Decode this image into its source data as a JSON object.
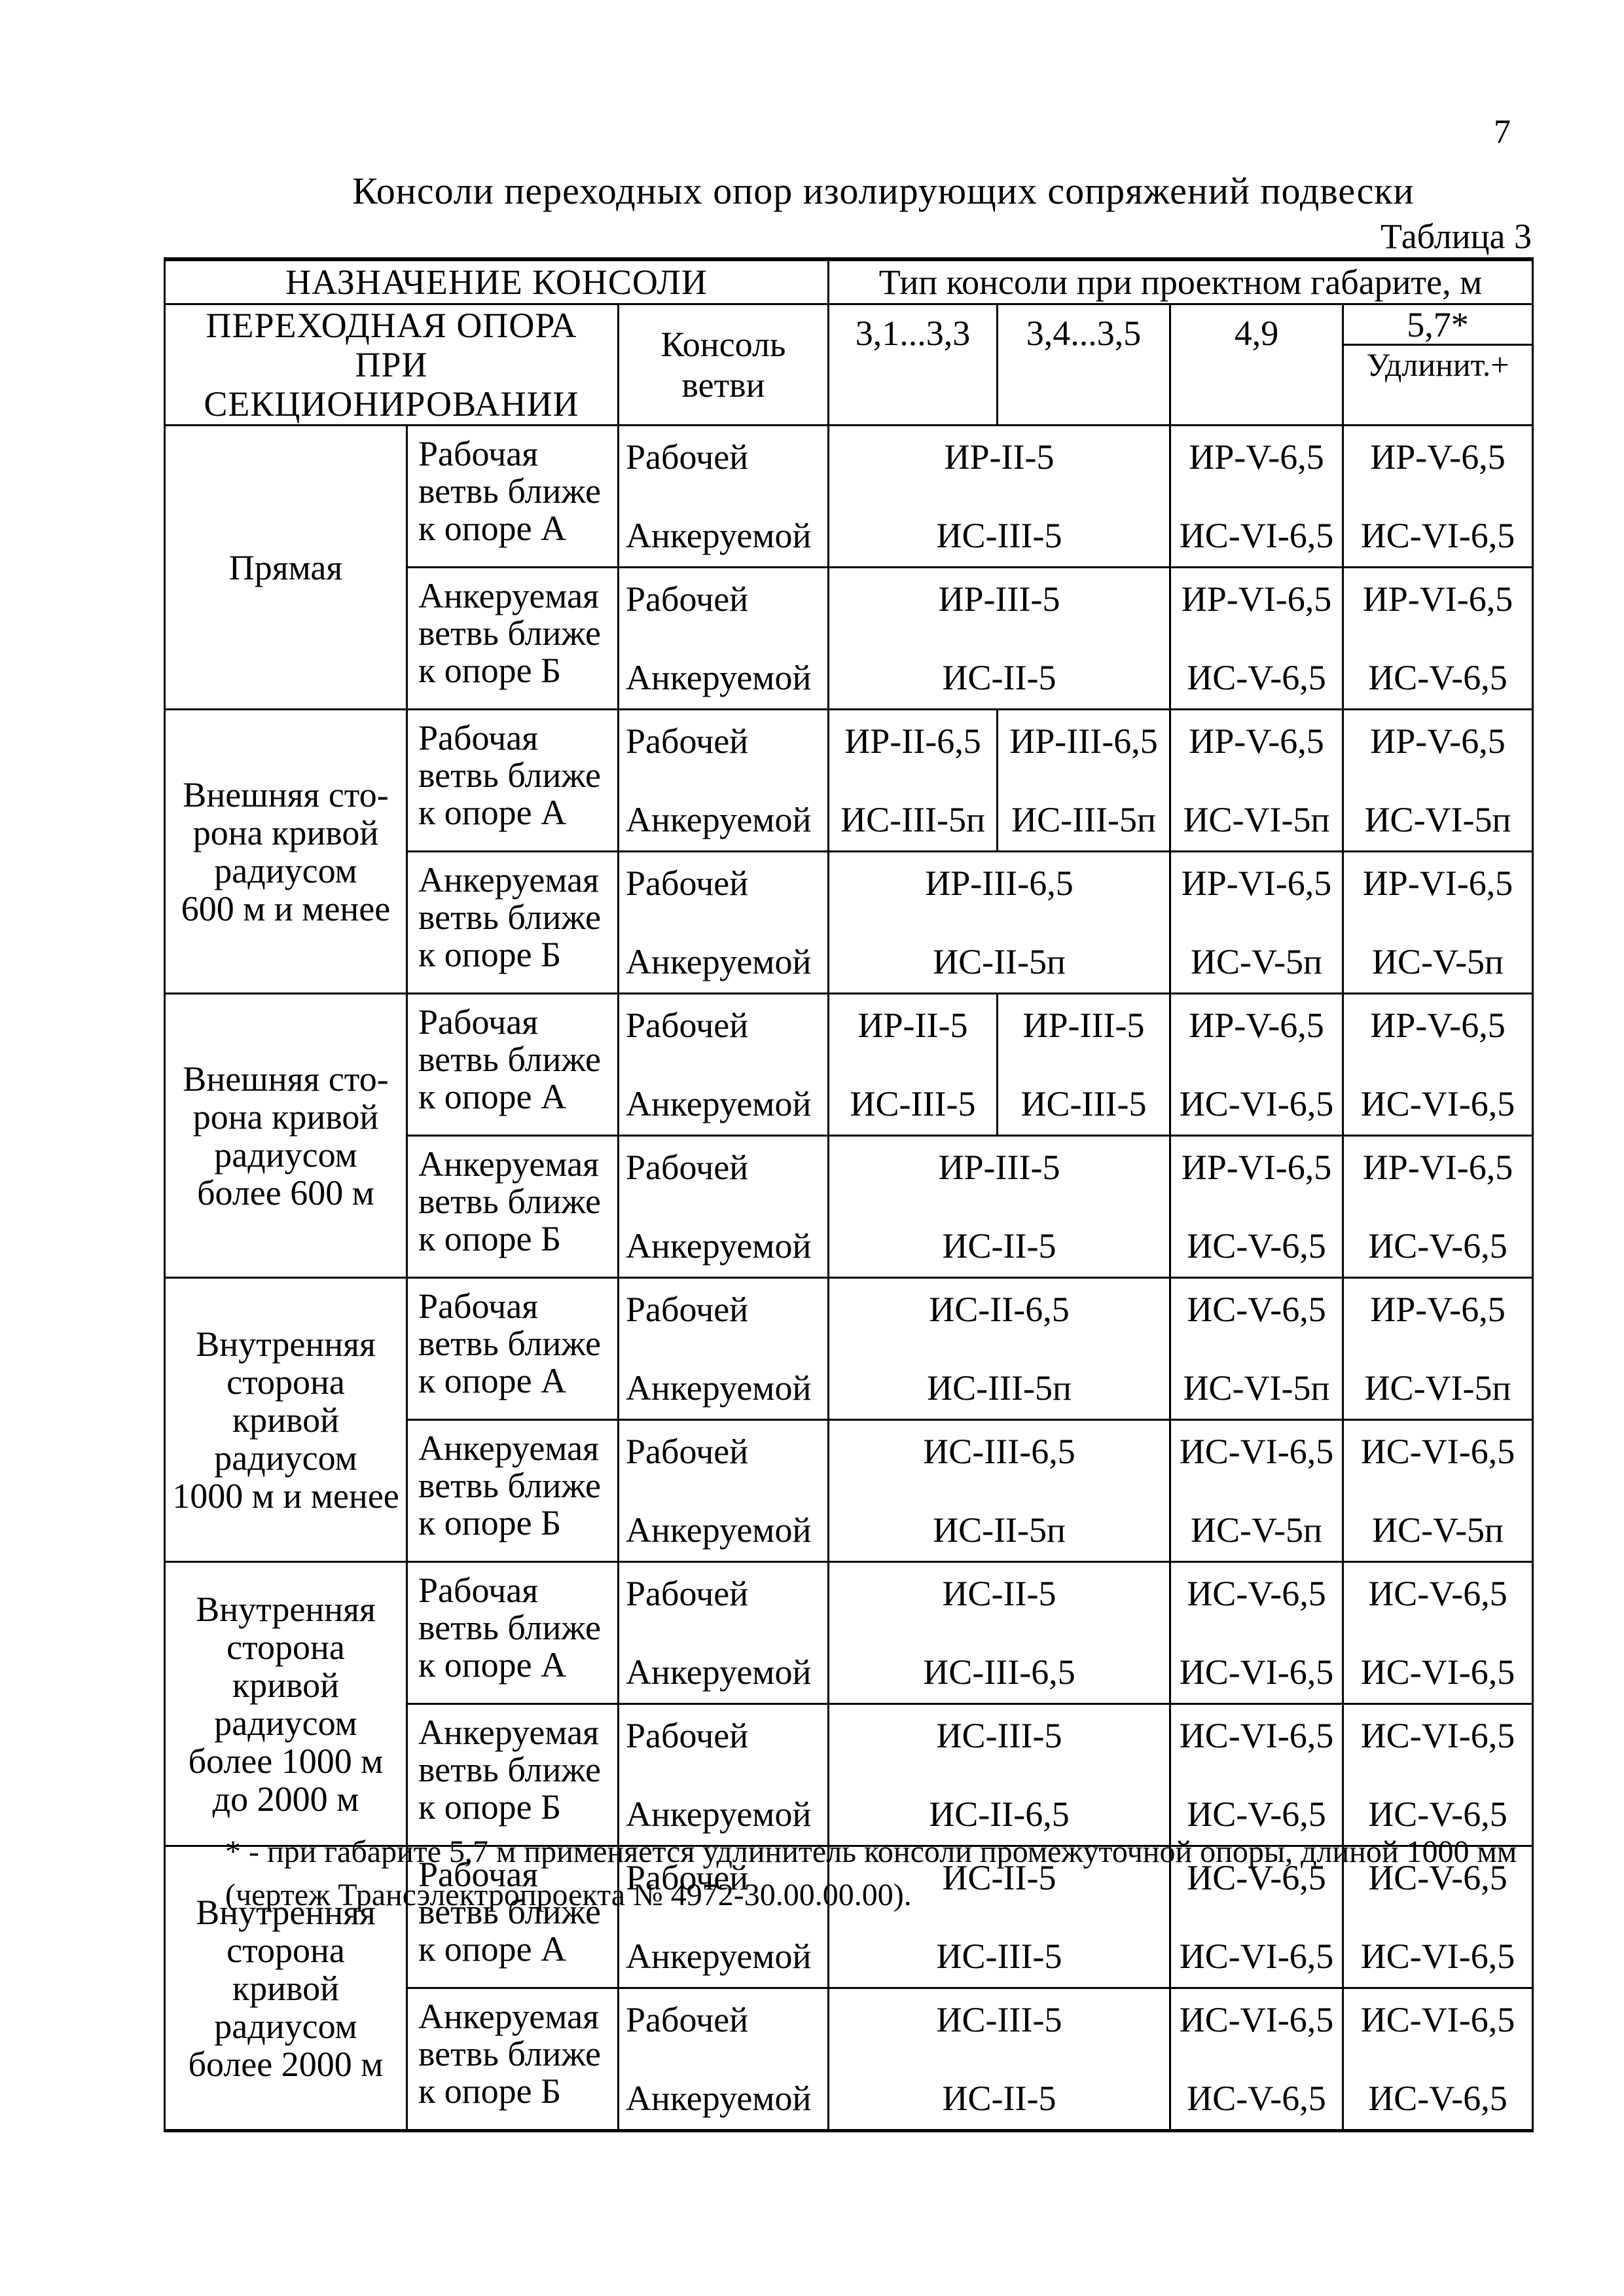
{
  "colors": {
    "ink": "#000000",
    "paper": "#ffffff"
  },
  "page_number": "7",
  "title": "Консоли переходных опор изолирующих сопряжений подвески",
  "table_caption": "Таблица 3",
  "footnote_lines": [
    "* - при габарите 5,7 м применяется удлинитель консоли промежуточной опоры, длиной 1000 мм",
    "(чертеж Трансэлектропроекта № 4972-30.00.00.00)."
  ],
  "table": {
    "header": {
      "purpose": "НАЗНАЧЕНИЕ КОНСОЛИ",
      "gauge_title": "Тип консоли при проектном габарите, м",
      "support_lines": [
        "ПЕРЕХОДНАЯ ОПОРА",
        "ПРИ СЕКЦИОНИРОВАНИИ"
      ],
      "console_lines": [
        "Консоль",
        "ветви"
      ],
      "gauges": [
        "3,1...3,3",
        "3,4...3,5",
        "4,9",
        "5,7*"
      ],
      "extension": "Удлинит.+"
    },
    "groups": [
      {
        "name_lines": [
          "Прямая"
        ],
        "blocks": [
          {
            "branch_lines": [
              "Рабочая",
              "ветвь ближе",
              "к опоре А"
            ],
            "rows": [
              {
                "console": "Рабочей",
                "values": [
                  {
                    "text": "ИР-II-5",
                    "span": 2
                  },
                  {
                    "text": "ИР-V-6,5",
                    "span": 1
                  },
                  {
                    "text": "ИР-V-6,5",
                    "span": 1
                  }
                ]
              },
              {
                "console": "Анкеруемой",
                "values": [
                  {
                    "text": "ИС-III-5",
                    "span": 2
                  },
                  {
                    "text": "ИС-VI-6,5",
                    "span": 1
                  },
                  {
                    "text": "ИС-VI-6,5",
                    "span": 1
                  }
                ]
              }
            ]
          },
          {
            "branch_lines": [
              "Анкеруемая",
              "ветвь ближе",
              "к опоре Б"
            ],
            "rows": [
              {
                "console": "Рабочей",
                "values": [
                  {
                    "text": "ИР-III-5",
                    "span": 2
                  },
                  {
                    "text": "ИР-VI-6,5",
                    "span": 1
                  },
                  {
                    "text": "ИР-VI-6,5",
                    "span": 1
                  }
                ]
              },
              {
                "console": "Анкеруемой",
                "values": [
                  {
                    "text": "ИС-II-5",
                    "span": 2
                  },
                  {
                    "text": "ИС-V-6,5",
                    "span": 1
                  },
                  {
                    "text": "ИС-V-6,5",
                    "span": 1
                  }
                ]
              }
            ]
          }
        ]
      },
      {
        "name_lines": [
          "Внешняя сто-",
          "рона кривой",
          "радиусом",
          "600 м и менее"
        ],
        "blocks": [
          {
            "branch_lines": [
              "Рабочая",
              "ветвь ближе",
              "к опоре А"
            ],
            "rows": [
              {
                "console": "Рабочей",
                "values": [
                  {
                    "text": "ИР-II-6,5",
                    "span": 1
                  },
                  {
                    "text": "ИР-III-6,5",
                    "span": 1
                  },
                  {
                    "text": "ИР-V-6,5",
                    "span": 1
                  },
                  {
                    "text": "ИР-V-6,5",
                    "span": 1
                  }
                ]
              },
              {
                "console": "Анкеруемой",
                "values": [
                  {
                    "text": "ИС-III-5п",
                    "span": 1
                  },
                  {
                    "text": "ИС-III-5п",
                    "span": 1
                  },
                  {
                    "text": "ИС-VI-5п",
                    "span": 1
                  },
                  {
                    "text": "ИС-VI-5п",
                    "span": 1
                  }
                ]
              }
            ]
          },
          {
            "branch_lines": [
              "Анкеруемая",
              "ветвь ближе",
              "к опоре Б"
            ],
            "rows": [
              {
                "console": "Рабочей",
                "values": [
                  {
                    "text": "ИР-III-6,5",
                    "span": 2
                  },
                  {
                    "text": "ИР-VI-6,5",
                    "span": 1
                  },
                  {
                    "text": "ИР-VI-6,5",
                    "span": 1
                  }
                ]
              },
              {
                "console": "Анкеруемой",
                "values": [
                  {
                    "text": "ИС-II-5п",
                    "span": 2
                  },
                  {
                    "text": "ИС-V-5п",
                    "span": 1
                  },
                  {
                    "text": "ИС-V-5п",
                    "span": 1
                  }
                ]
              }
            ]
          }
        ]
      },
      {
        "name_lines": [
          "Внешняя сто-",
          "рона кривой",
          "радиусом",
          "более 600 м"
        ],
        "blocks": [
          {
            "branch_lines": [
              "Рабочая",
              "ветвь ближе",
              "к опоре А"
            ],
            "rows": [
              {
                "console": "Рабочей",
                "values": [
                  {
                    "text": "ИР-II-5",
                    "span": 1
                  },
                  {
                    "text": "ИР-III-5",
                    "span": 1
                  },
                  {
                    "text": "ИР-V-6,5",
                    "span": 1
                  },
                  {
                    "text": "ИР-V-6,5",
                    "span": 1
                  }
                ]
              },
              {
                "console": "Анкеруемой",
                "values": [
                  {
                    "text": "ИС-III-5",
                    "span": 1
                  },
                  {
                    "text": "ИС-III-5",
                    "span": 1
                  },
                  {
                    "text": "ИС-VI-6,5",
                    "span": 1
                  },
                  {
                    "text": "ИС-VI-6,5",
                    "span": 1
                  }
                ]
              }
            ]
          },
          {
            "branch_lines": [
              "Анкеруемая",
              "ветвь ближе",
              "к опоре Б"
            ],
            "rows": [
              {
                "console": "Рабочей",
                "values": [
                  {
                    "text": "ИР-III-5",
                    "span": 2
                  },
                  {
                    "text": "ИР-VI-6,5",
                    "span": 1
                  },
                  {
                    "text": "ИР-VI-6,5",
                    "span": 1
                  }
                ]
              },
              {
                "console": "Анкеруемой",
                "values": [
                  {
                    "text": "ИС-II-5",
                    "span": 2
                  },
                  {
                    "text": "ИС-V-6,5",
                    "span": 1
                  },
                  {
                    "text": "ИС-V-6,5",
                    "span": 1
                  }
                ]
              }
            ]
          }
        ]
      },
      {
        "name_lines": [
          "Внутренняя",
          "сторона",
          "кривой",
          "радиусом",
          "1000 м и менее"
        ],
        "blocks": [
          {
            "branch_lines": [
              "Рабочая",
              "ветвь ближе",
              "к опоре А"
            ],
            "rows": [
              {
                "console": "Рабочей",
                "values": [
                  {
                    "text": "ИС-II-6,5",
                    "span": 2
                  },
                  {
                    "text": "ИС-V-6,5",
                    "span": 1
                  },
                  {
                    "text": "ИР-V-6,5",
                    "span": 1
                  }
                ]
              },
              {
                "console": "Анкеруемой",
                "values": [
                  {
                    "text": "ИС-III-5п",
                    "span": 2
                  },
                  {
                    "text": "ИС-VI-5п",
                    "span": 1
                  },
                  {
                    "text": "ИС-VI-5п",
                    "span": 1
                  }
                ]
              }
            ]
          },
          {
            "branch_lines": [
              "Анкеруемая",
              "ветвь ближе",
              "к опоре Б"
            ],
            "rows": [
              {
                "console": "Рабочей",
                "values": [
                  {
                    "text": "ИС-III-6,5",
                    "span": 2
                  },
                  {
                    "text": "ИС-VI-6,5",
                    "span": 1
                  },
                  {
                    "text": "ИС-VI-6,5",
                    "span": 1
                  }
                ]
              },
              {
                "console": "Анкеруемой",
                "values": [
                  {
                    "text": "ИС-II-5п",
                    "span": 2
                  },
                  {
                    "text": "ИС-V-5п",
                    "span": 1
                  },
                  {
                    "text": "ИС-V-5п",
                    "span": 1
                  }
                ]
              }
            ]
          }
        ]
      },
      {
        "name_lines": [
          "Внутренняя",
          "сторона",
          "кривой",
          "радиусом",
          "более 1000 м",
          "до 2000 м"
        ],
        "blocks": [
          {
            "branch_lines": [
              "Рабочая",
              "ветвь ближе",
              "к опоре А"
            ],
            "rows": [
              {
                "console": "Рабочей",
                "values": [
                  {
                    "text": "ИС-II-5",
                    "span": 2
                  },
                  {
                    "text": "ИС-V-6,5",
                    "span": 1
                  },
                  {
                    "text": "ИС-V-6,5",
                    "span": 1
                  }
                ]
              },
              {
                "console": "Анкеруемой",
                "values": [
                  {
                    "text": "ИС-III-6,5",
                    "span": 2
                  },
                  {
                    "text": "ИС-VI-6,5",
                    "span": 1
                  },
                  {
                    "text": "ИС-VI-6,5",
                    "span": 1
                  }
                ]
              }
            ]
          },
          {
            "branch_lines": [
              "Анкеруемая",
              "ветвь ближе",
              "к опоре Б"
            ],
            "rows": [
              {
                "console": "Рабочей",
                "values": [
                  {
                    "text": "ИС-III-5",
                    "span": 2
                  },
                  {
                    "text": "ИС-VI-6,5",
                    "span": 1
                  },
                  {
                    "text": "ИС-VI-6,5",
                    "span": 1
                  }
                ]
              },
              {
                "console": "Анкеруемой",
                "values": [
                  {
                    "text": "ИС-II-6,5",
                    "span": 2
                  },
                  {
                    "text": "ИС-V-6,5",
                    "span": 1
                  },
                  {
                    "text": "ИС-V-6,5",
                    "span": 1
                  }
                ]
              }
            ]
          }
        ]
      },
      {
        "name_lines": [
          "Внутренняя",
          "сторона",
          "кривой",
          "радиусом",
          "более 2000 м"
        ],
        "blocks": [
          {
            "branch_lines": [
              "Рабочая",
              "ветвь ближе",
              "к опоре А"
            ],
            "rows": [
              {
                "console": "Рабочей",
                "values": [
                  {
                    "text": "ИС-II-5",
                    "span": 2
                  },
                  {
                    "text": "ИС-V-6,5",
                    "span": 1
                  },
                  {
                    "text": "ИС-V-6,5",
                    "span": 1
                  }
                ]
              },
              {
                "console": "Анкеруемой",
                "values": [
                  {
                    "text": "ИС-III-5",
                    "span": 2
                  },
                  {
                    "text": "ИС-VI-6,5",
                    "span": 1
                  },
                  {
                    "text": "ИС-VI-6,5",
                    "span": 1
                  }
                ]
              }
            ]
          },
          {
            "branch_lines": [
              "Анкеруемая",
              "ветвь ближе",
              "к опоре Б"
            ],
            "rows": [
              {
                "console": "Рабочей",
                "values": [
                  {
                    "text": "ИС-III-5",
                    "span": 2
                  },
                  {
                    "text": "ИС-VI-6,5",
                    "span": 1
                  },
                  {
                    "text": "ИС-VI-6,5",
                    "span": 1
                  }
                ]
              },
              {
                "console": "Анкеруемой",
                "values": [
                  {
                    "text": "ИС-II-5",
                    "span": 2
                  },
                  {
                    "text": "ИС-V-6,5",
                    "span": 1
                  },
                  {
                    "text": "ИС-V-6,5",
                    "span": 1
                  }
                ]
              }
            ]
          }
        ]
      }
    ]
  }
}
